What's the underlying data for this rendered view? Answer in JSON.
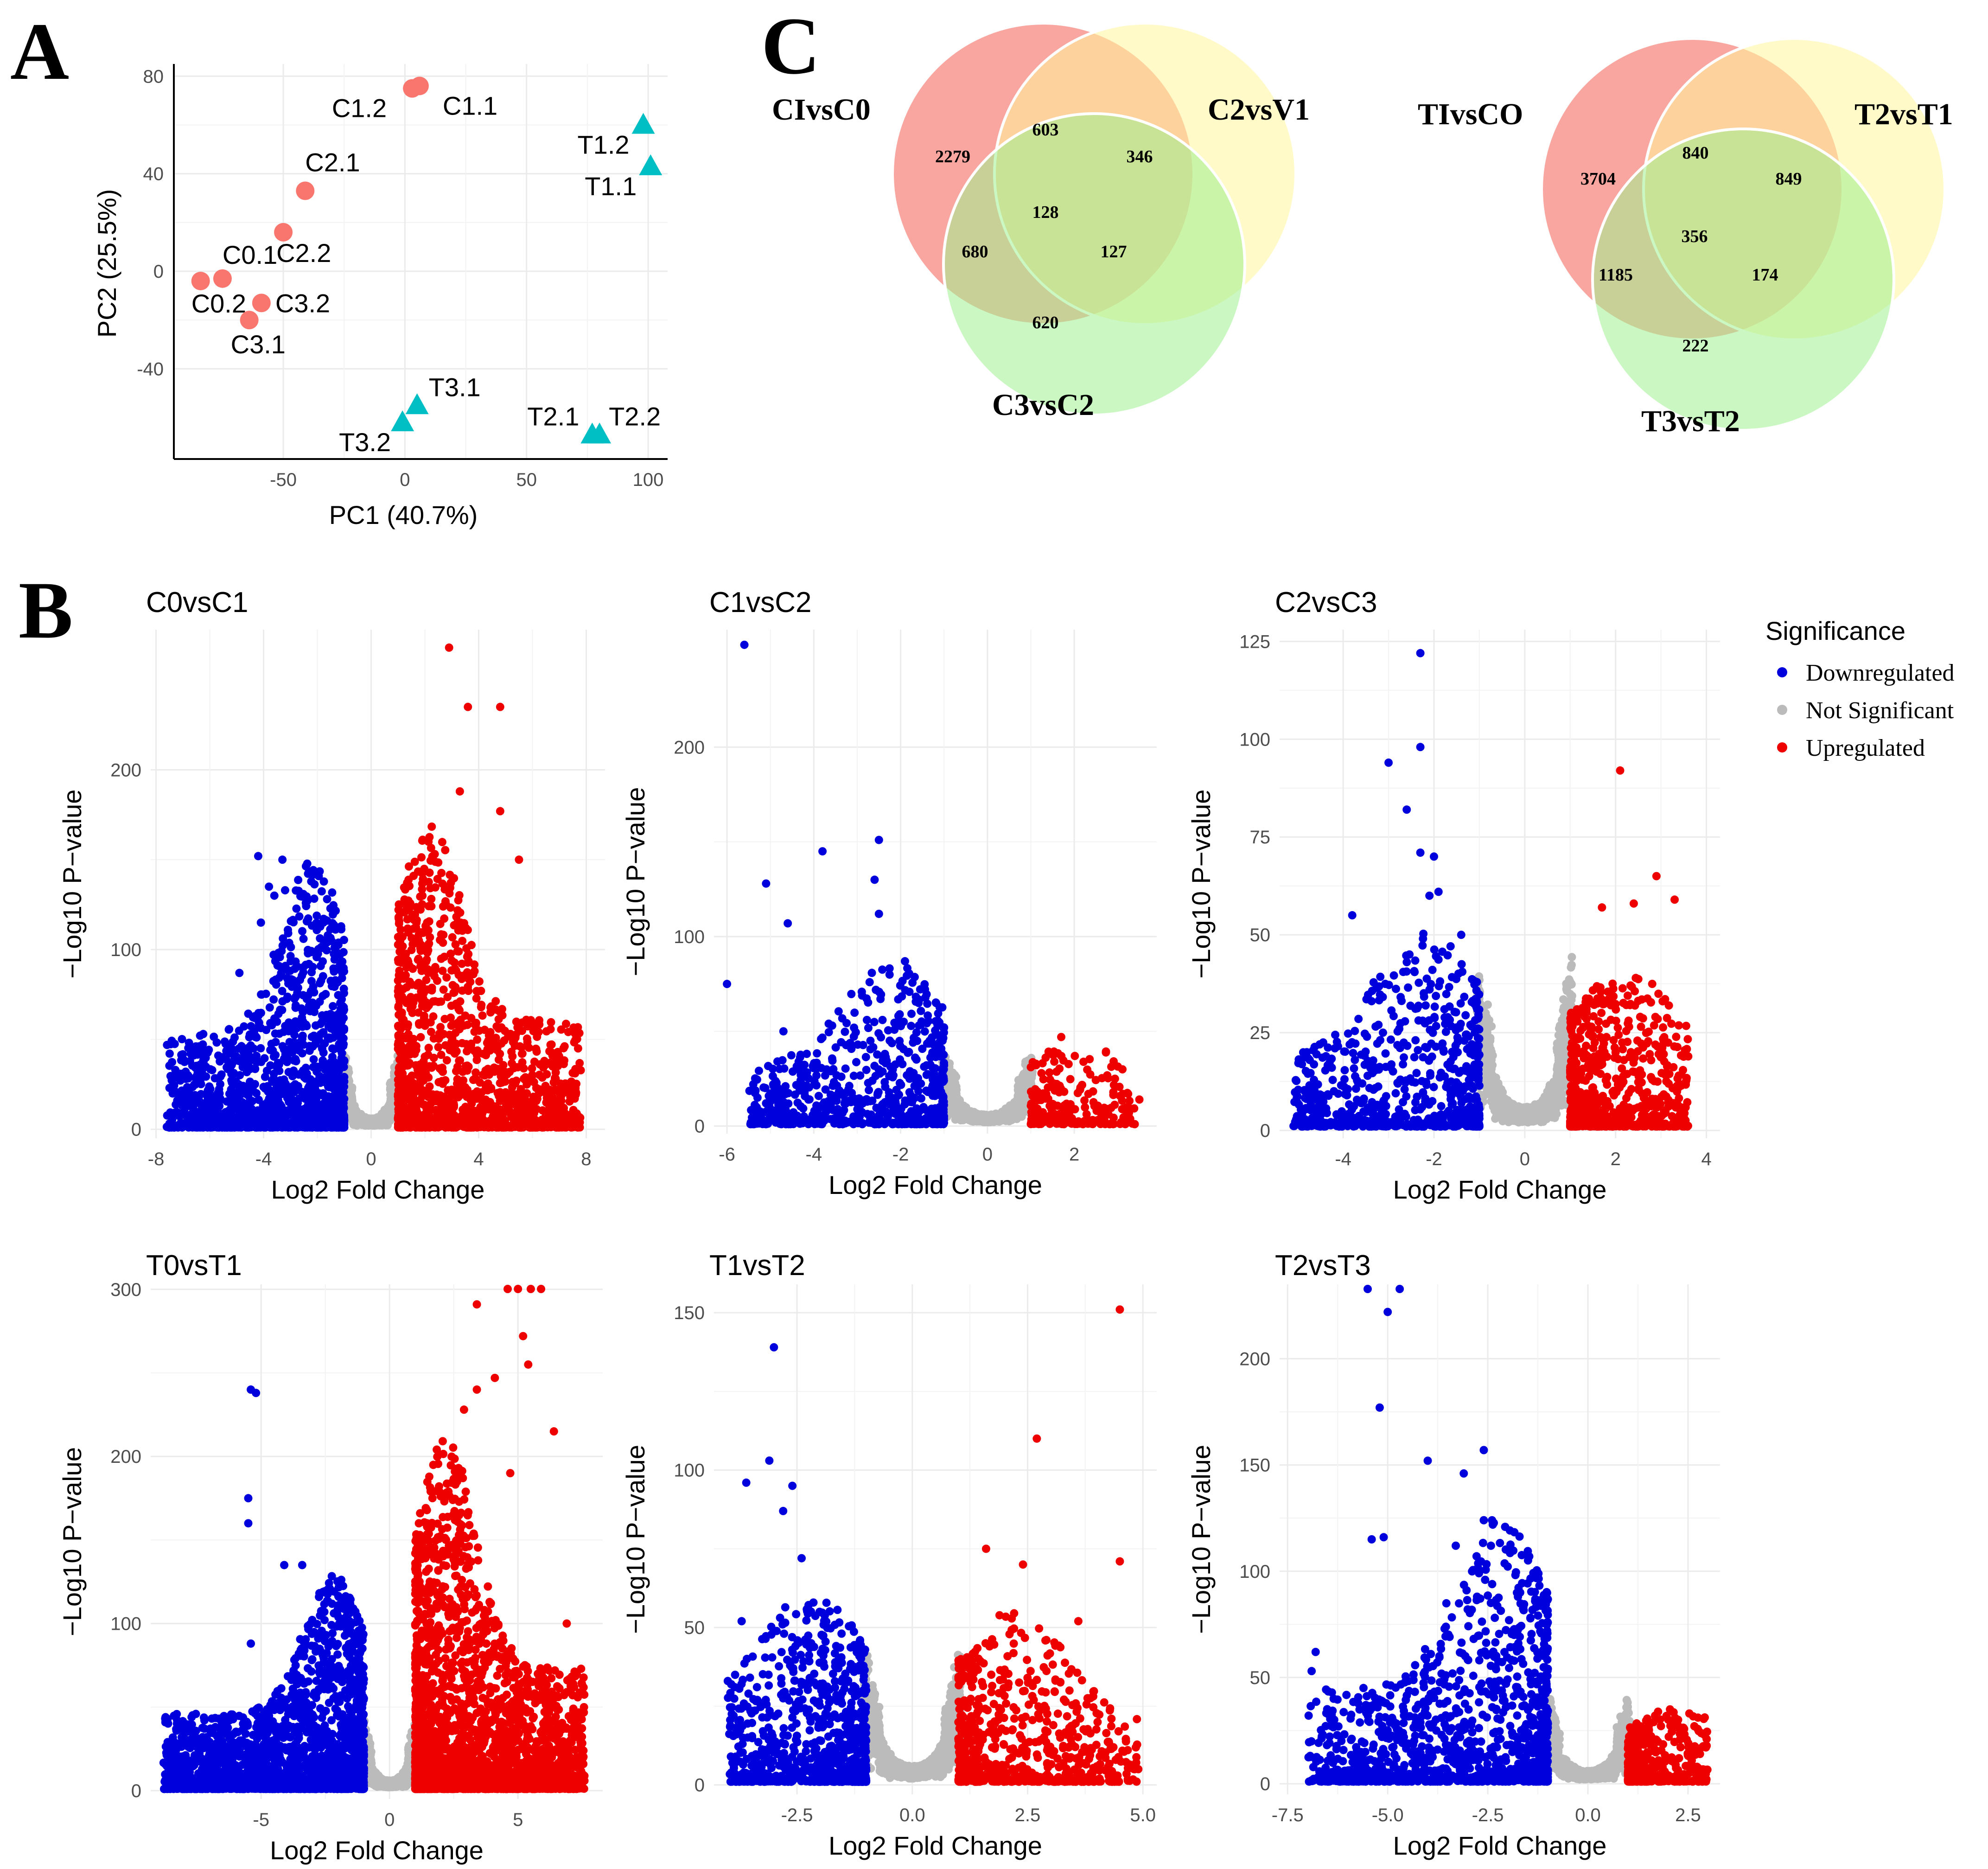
{
  "panels": {
    "a": "A",
    "b": "B",
    "c": "C"
  },
  "colors": {
    "ctrl": "#f8766d",
    "trt": "#00bfc4",
    "down": "#0000dd",
    "ns": "#bbbbbb",
    "up": "#ee0000"
  },
  "chart_data": [
    {
      "type": "scatter",
      "id": "pca",
      "title": "",
      "xlabel": "PC1 (40.7%)",
      "ylabel": "PC2 (25.5%)",
      "xlim": [
        -95,
        108
      ],
      "ylim": [
        -77,
        85
      ],
      "xticks": [
        -50,
        0,
        50,
        100
      ],
      "yticks": [
        -40,
        0,
        40,
        80
      ],
      "points": [
        {
          "label": "C1.2",
          "x": 3,
          "y": 75,
          "group": "ctrl"
        },
        {
          "label": "C1.1",
          "x": 6,
          "y": 76,
          "group": "ctrl"
        },
        {
          "label": "C2.1",
          "x": -41,
          "y": 33,
          "group": "ctrl"
        },
        {
          "label": "C2.2",
          "x": -50,
          "y": 16,
          "group": "ctrl"
        },
        {
          "label": "C0.1",
          "x": -75,
          "y": -3,
          "group": "ctrl"
        },
        {
          "label": "C0.2",
          "x": -84,
          "y": -4,
          "group": "ctrl"
        },
        {
          "label": "C3.2",
          "x": -59,
          "y": -13,
          "group": "ctrl"
        },
        {
          "label": "C3.1",
          "x": -64,
          "y": -20,
          "group": "ctrl"
        },
        {
          "label": "T1.2",
          "x": 98,
          "y": 60,
          "group": "trt"
        },
        {
          "label": "T1.1",
          "x": 101,
          "y": 43,
          "group": "trt"
        },
        {
          "label": "T3.1",
          "x": 5,
          "y": -55,
          "group": "trt"
        },
        {
          "label": "T3.2",
          "x": -1,
          "y": -62,
          "group": "trt"
        },
        {
          "label": "T2.1",
          "x": 77,
          "y": -67,
          "group": "trt"
        },
        {
          "label": "T2.2",
          "x": 80,
          "y": -67,
          "group": "trt"
        }
      ]
    },
    {
      "type": "scatter",
      "id": "v1",
      "title": "C0vsC1",
      "xlabel": "Log2 Fold Change",
      "ylabel": "−Log10 P−value",
      "xlim": [
        -8.2,
        8.7
      ],
      "ylim": [
        -5,
        278
      ],
      "xticks": [
        -8,
        -4,
        0,
        4,
        8
      ],
      "yticks": [
        0,
        100,
        200
      ],
      "xmin": -7.6,
      "xmax": 7.8,
      "ymaxDown": 150,
      "ymaxUp": 170,
      "nDown": 1400,
      "nUp": 1400,
      "nNs": 1200,
      "outliers": [
        [
          2.9,
          268
        ],
        [
          3.6,
          235
        ],
        [
          4.8,
          235
        ],
        [
          4.8,
          177
        ],
        [
          3.3,
          188
        ],
        [
          5.5,
          150
        ],
        [
          -4.2,
          152
        ],
        [
          -3.8,
          135
        ],
        [
          -3.6,
          130
        ],
        [
          -3.3,
          150
        ],
        [
          -3.2,
          133
        ],
        [
          -4.1,
          115
        ],
        [
          -4.9,
          87
        ],
        [
          -5.3,
          45
        ],
        [
          -7.5,
          23
        ],
        [
          -6.4,
          16
        ],
        [
          6.0,
          30
        ],
        [
          7.6,
          23
        ]
      ]
    },
    {
      "type": "scatter",
      "id": "v2",
      "title": "C1vsC2",
      "xlabel": "Log2 Fold Change",
      "ylabel": "−Log10 P−value",
      "xlim": [
        -6.3,
        3.9
      ],
      "ylim": [
        -4,
        262
      ],
      "xticks": [
        -6,
        -4,
        -2,
        0,
        2
      ],
      "yticks": [
        0,
        100,
        200
      ],
      "xmin": -5.5,
      "xmax": 3.4,
      "ymaxDown": 85,
      "ymaxUp": 45,
      "nDown": 700,
      "nUp": 220,
      "nNs": 900,
      "outliers": [
        [
          -5.6,
          254
        ],
        [
          -3.8,
          145
        ],
        [
          -2.5,
          151
        ],
        [
          -2.6,
          130
        ],
        [
          -2.5,
          112
        ],
        [
          -5.1,
          128
        ],
        [
          -4.6,
          107
        ],
        [
          -4.7,
          50
        ],
        [
          -6.0,
          75
        ],
        [
          -5.1,
          12
        ],
        [
          -1.9,
          87
        ],
        [
          1.7,
          47
        ],
        [
          3.5,
          14
        ]
      ]
    },
    {
      "type": "scatter",
      "id": "v3",
      "title": "C2vsC3",
      "xlabel": "Log2 Fold Change",
      "ylabel": "−Log10 P−value",
      "xlim": [
        -5.4,
        4.3
      ],
      "ylim": [
        -2,
        128
      ],
      "xticks": [
        -4,
        -2,
        0,
        2,
        4
      ],
      "yticks": [
        0,
        25,
        50,
        75,
        100,
        125
      ],
      "xmin": -5.1,
      "xmax": 3.6,
      "ymaxDown": 50,
      "ymaxUp": 40,
      "nDown": 700,
      "nUp": 650,
      "nNs": 1100,
      "outliers": [
        [
          -2.3,
          122
        ],
        [
          -2.3,
          98
        ],
        [
          -3.0,
          94
        ],
        [
          -2.6,
          82
        ],
        [
          -2.3,
          71
        ],
        [
          -2.0,
          70
        ],
        [
          -3.8,
          55
        ],
        [
          -2.1,
          60
        ],
        [
          -1.9,
          61
        ],
        [
          -1.4,
          50
        ],
        [
          2.1,
          92
        ],
        [
          2.9,
          65
        ],
        [
          3.3,
          59
        ],
        [
          2.4,
          58
        ],
        [
          1.7,
          57
        ],
        [
          -4.8,
          20
        ],
        [
          -5.0,
          7
        ],
        [
          3.4,
          3
        ]
      ]
    },
    {
      "type": "scatter",
      "id": "v4",
      "title": "T0vsT1",
      "xlabel": "Log2 Fold Change",
      "ylabel": "−Log10 P−value",
      "xlim": [
        -9.3,
        8.3
      ],
      "ylim": [
        -5,
        303
      ],
      "xticks": [
        -5,
        0,
        5
      ],
      "yticks": [
        0,
        100,
        200,
        300
      ],
      "xmin": -8.8,
      "xmax": 7.6,
      "ymaxDown": 130,
      "ymaxUp": 210,
      "nDown": 1900,
      "nUp": 2200,
      "nNs": 1300,
      "outliers": [
        [
          4.6,
          303
        ],
        [
          5.0,
          303
        ],
        [
          5.5,
          303
        ],
        [
          5.9,
          303
        ],
        [
          3.4,
          291
        ],
        [
          5.2,
          272
        ],
        [
          5.4,
          255
        ],
        [
          -5.4,
          240
        ],
        [
          -5.2,
          238
        ],
        [
          -5.5,
          175
        ],
        [
          -5.5,
          160
        ],
        [
          4.1,
          247
        ],
        [
          3.4,
          240
        ],
        [
          2.9,
          228
        ],
        [
          4.7,
          190
        ],
        [
          6.4,
          215
        ],
        [
          -4.1,
          135
        ],
        [
          -3.4,
          135
        ],
        [
          -8.6,
          16
        ],
        [
          -5.4,
          88
        ],
        [
          -8.0,
          40
        ],
        [
          7.3,
          34
        ],
        [
          6.9,
          100
        ]
      ]
    },
    {
      "type": "scatter",
      "id": "v5",
      "title": "T1vsT2",
      "xlabel": "Log2 Fold Change",
      "ylabel": "−Log10 P−value",
      "xlim": [
        -4.3,
        5.3
      ],
      "ylim": [
        -3,
        159
      ],
      "xticks": [
        -2.5,
        0.0,
        2.5,
        5.0
      ],
      "yticks": [
        0,
        50,
        100,
        150
      ],
      "xmin": -4.0,
      "xmax": 4.9,
      "ymaxDown": 60,
      "ymaxUp": 55,
      "nDown": 800,
      "nUp": 650,
      "nNs": 1100,
      "outliers": [
        [
          -3.0,
          139
        ],
        [
          -3.1,
          103
        ],
        [
          -3.6,
          96
        ],
        [
          -2.6,
          95
        ],
        [
          -2.8,
          87
        ],
        [
          4.5,
          151
        ],
        [
          2.7,
          110
        ],
        [
          1.6,
          75
        ],
        [
          2.4,
          70
        ],
        [
          4.5,
          71
        ],
        [
          -2.4,
          72
        ],
        [
          -3.7,
          52
        ],
        [
          -4.0,
          33
        ],
        [
          -3.9,
          7
        ],
        [
          4.9,
          5
        ],
        [
          3.6,
          52
        ]
      ]
    },
    {
      "type": "scatter",
      "id": "v6",
      "title": "T2vsT3",
      "xlabel": "Log2 Fold Change",
      "ylabel": "−Log10 P−value",
      "xlim": [
        -7.7,
        3.3
      ],
      "ylim": [
        -5,
        235
      ],
      "xticks": [
        -7.5,
        -5.0,
        -2.5,
        0.0,
        2.5
      ],
      "yticks": [
        0,
        50,
        100,
        150,
        200
      ],
      "xmin": -7.0,
      "xmax": 3.0,
      "ymaxDown": 125,
      "ymaxUp": 35,
      "nDown": 1200,
      "nUp": 380,
      "nNs": 1100,
      "outliers": [
        [
          -5.5,
          235
        ],
        [
          -4.7,
          235
        ],
        [
          -5.0,
          222
        ],
        [
          -5.2,
          177
        ],
        [
          -4.0,
          152
        ],
        [
          -3.1,
          146
        ],
        [
          -2.6,
          157
        ],
        [
          -2.6,
          124
        ],
        [
          -3.3,
          112
        ],
        [
          -6.8,
          62
        ],
        [
          -6.9,
          53
        ],
        [
          -5.4,
          115
        ],
        [
          -5.1,
          116
        ],
        [
          -6.4,
          32
        ]
      ]
    }
  ],
  "legend": {
    "title": "Significance",
    "items": [
      {
        "label": "Downregulated",
        "key": "down"
      },
      {
        "label": "Not Significant",
        "key": "ns"
      },
      {
        "label": "Upregulated",
        "key": "up"
      }
    ]
  },
  "venn": [
    {
      "labels": {
        "a": "CIvsC0",
        "b": "C2vsV1",
        "c": "C3vsC2"
      },
      "counts": {
        "a": "2279",
        "ab": "603",
        "b": "346",
        "abc": "128",
        "ac": "680",
        "bc": "127",
        "c": "620"
      }
    },
    {
      "labels": {
        "a": "TIvsCO",
        "b": "T2vsT1",
        "c": "T3vsT2"
      },
      "counts": {
        "a": "3704",
        "ab": "840",
        "b": "849",
        "abc": "356",
        "ac": "1185",
        "bc": "174",
        "c": "222"
      }
    }
  ]
}
